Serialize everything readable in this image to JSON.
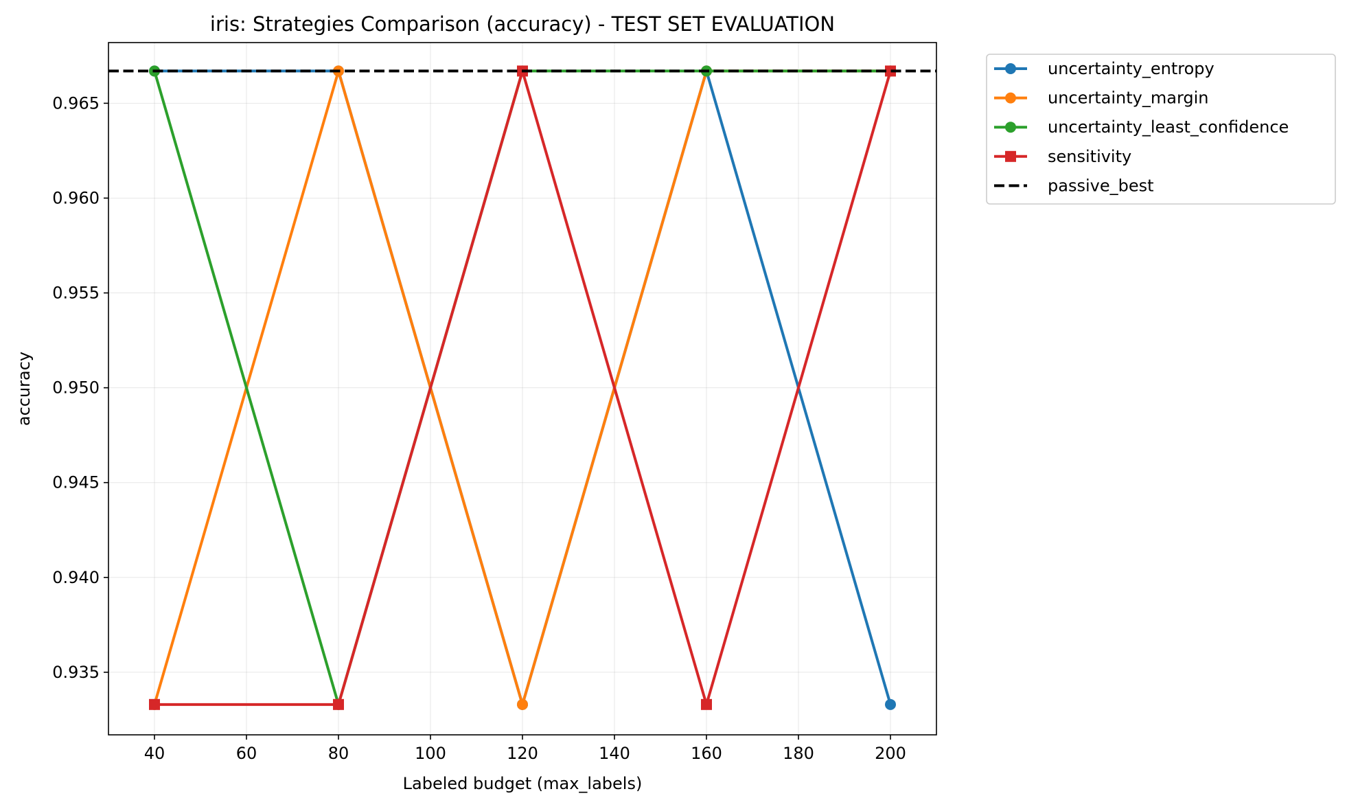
{
  "chart_data": {
    "type": "line",
    "title": "iris: Strategies Comparison (accuracy) - TEST SET EVALUATION",
    "xlabel": "Labeled budget (max_labels)",
    "ylabel": "accuracy",
    "xlim": [
      30,
      210
    ],
    "ylim": [
      0.9317,
      0.9682
    ],
    "xticks": [
      40,
      60,
      80,
      100,
      120,
      140,
      160,
      180,
      200
    ],
    "xtick_labels": [
      "40",
      "60",
      "80",
      "100",
      "120",
      "140",
      "160",
      "180",
      "200"
    ],
    "yticks": [
      0.935,
      0.94,
      0.945,
      0.95,
      0.955,
      0.96,
      0.965
    ],
    "ytick_labels": [
      "0.935",
      "0.940",
      "0.945",
      "0.950",
      "0.955",
      "0.960",
      "0.965"
    ],
    "grid": true,
    "legend_placement": "outside-top-right",
    "x": [
      40,
      80,
      120,
      160,
      200
    ],
    "series": [
      {
        "name": "uncertainty_entropy",
        "color": "#1f77b4",
        "marker": "circle",
        "values": [
          0.9667,
          0.9667,
          0.9333,
          0.9667,
          0.9333
        ]
      },
      {
        "name": "uncertainty_margin",
        "color": "#ff7f0e",
        "marker": "circle",
        "values": [
          0.9333,
          0.9667,
          0.9333,
          0.9667,
          0.9667
        ]
      },
      {
        "name": "uncertainty_least_confidence",
        "color": "#2ca02c",
        "marker": "circle",
        "values": [
          0.9667,
          0.9333,
          0.9667,
          0.9667,
          0.9667
        ]
      },
      {
        "name": "sensitivity",
        "color": "#d62728",
        "marker": "square",
        "values": [
          0.9333,
          0.9333,
          0.9667,
          0.9333,
          0.9667
        ]
      }
    ],
    "reference_lines": [
      {
        "name": "passive_best",
        "color": "#000000",
        "style": "dashed",
        "value": 0.9667
      }
    ]
  }
}
